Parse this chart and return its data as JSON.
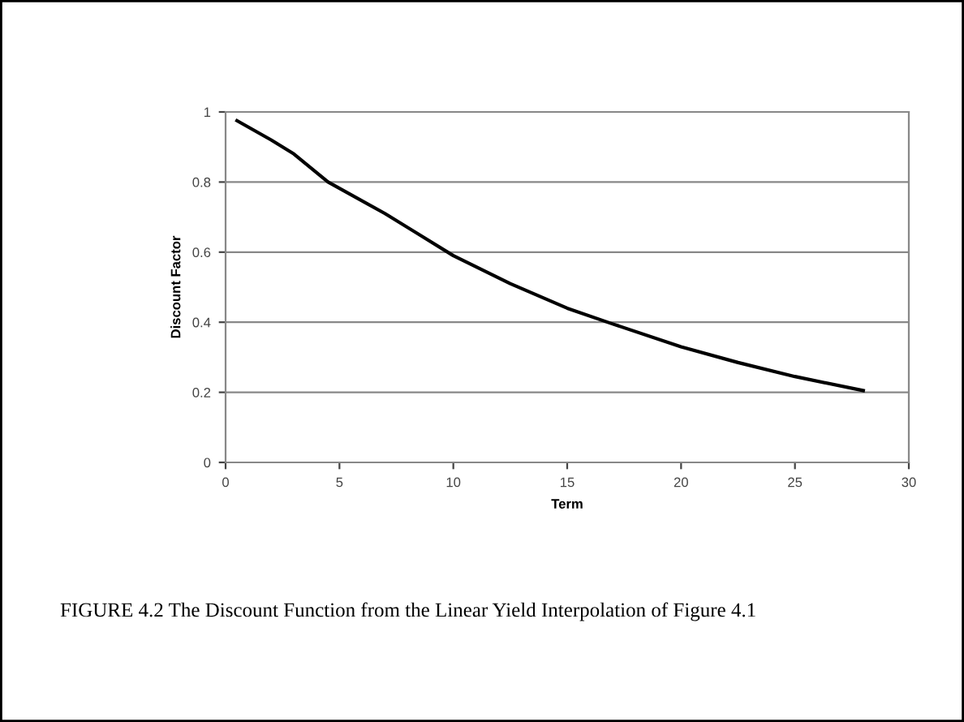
{
  "chart_data": {
    "type": "line",
    "xlabel": "Term",
    "ylabel": "Discount Factor",
    "annotations": [
      "FIGURE 4.2 The Discount Function from the Linear Yield Interpolation of Figure 4.1"
    ],
    "series": [
      {
        "color": "#000000",
        "x": [
          0.5,
          2,
          3,
          4.5,
          7,
          10,
          12.5,
          15,
          17,
          20,
          22.5,
          25,
          28
        ],
        "values": [
          0.975,
          0.92,
          0.88,
          0.8,
          0.71,
          0.59,
          0.51,
          0.44,
          0.395,
          0.33,
          0.285,
          0.245,
          0.205
        ]
      }
    ],
    "xlim": [
      0,
      30
    ],
    "xticks": [
      0,
      5,
      10,
      15,
      20,
      25,
      30
    ],
    "ylim": [
      0,
      1
    ],
    "yticks": [
      0,
      0.2,
      0.4,
      0.6,
      0.8,
      1
    ],
    "grid": "y",
    "marker": "none",
    "line_style": "solid",
    "legend": false
  }
}
